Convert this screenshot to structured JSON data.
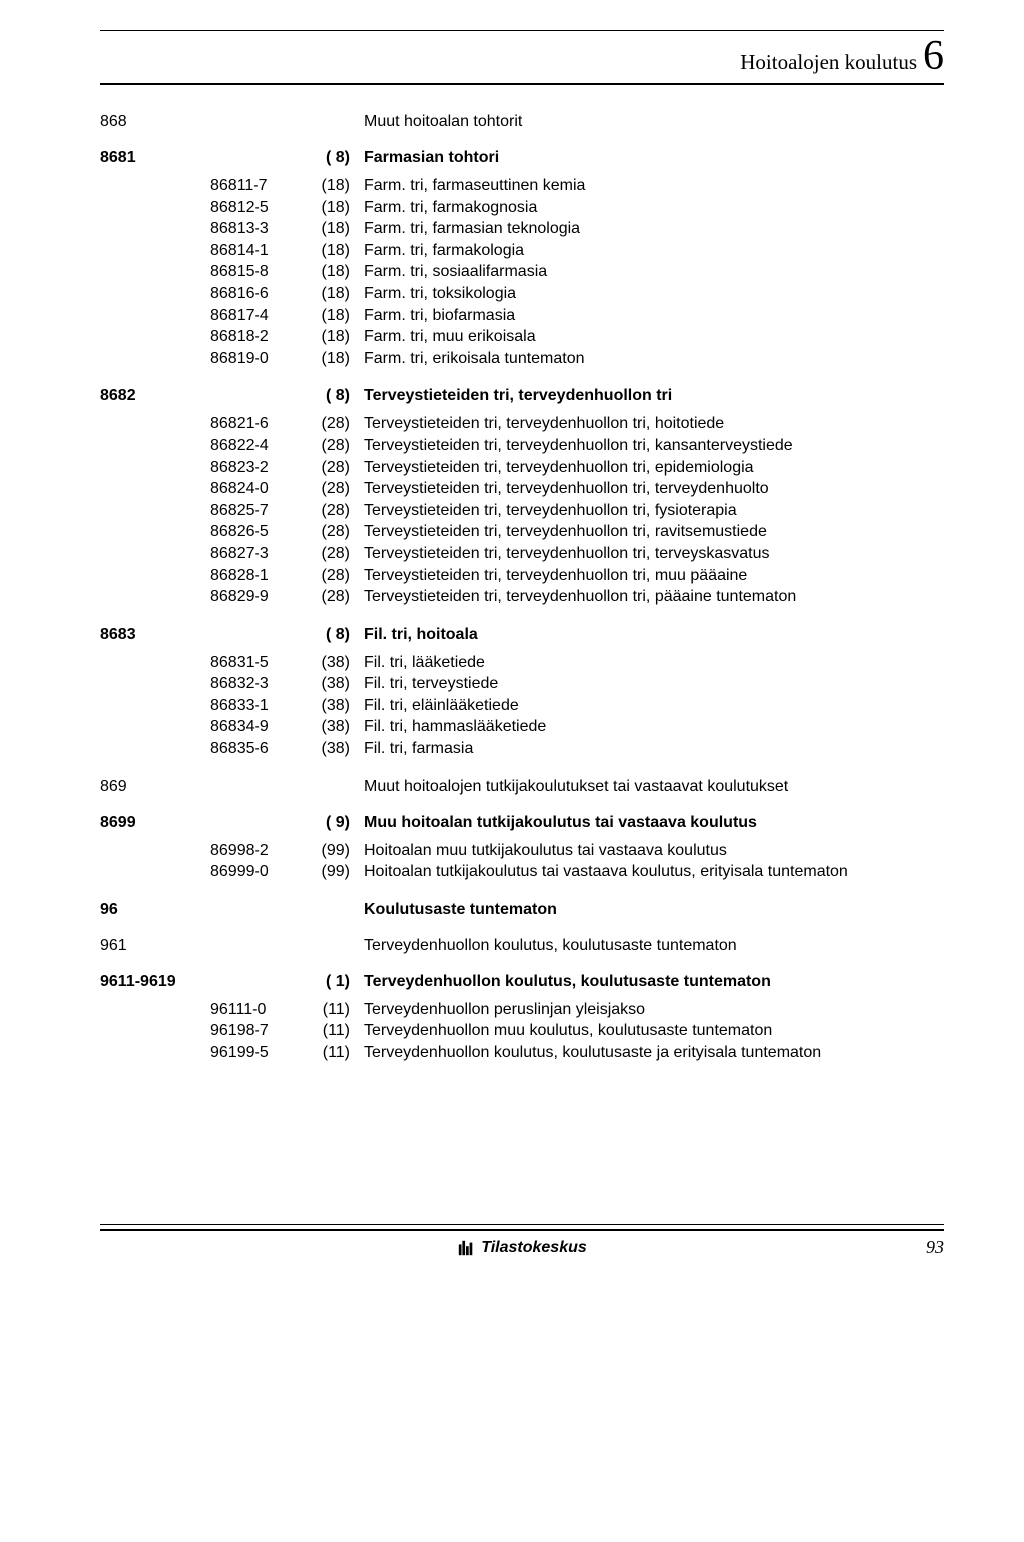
{
  "header": {
    "title": "Hoitoalojen koulutus",
    "chapter_number": "6"
  },
  "sections": [
    {
      "code": "868",
      "text": "Muut hoitoalan tohtorit",
      "type": "plain"
    },
    {
      "code": "8681",
      "paren": "( 8)",
      "text": "Farmasian tohtori",
      "type": "bold",
      "rows": [
        {
          "sub": "86811-7",
          "paren": "(18)",
          "text": "Farm. tri, farmaseuttinen kemia"
        },
        {
          "sub": "86812-5",
          "paren": "(18)",
          "text": "Farm. tri, farmakognosia"
        },
        {
          "sub": "86813-3",
          "paren": "(18)",
          "text": "Farm. tri, farmasian teknologia"
        },
        {
          "sub": "86814-1",
          "paren": "(18)",
          "text": "Farm. tri, farmakologia"
        },
        {
          "sub": "86815-8",
          "paren": "(18)",
          "text": "Farm. tri, sosiaalifarmasia"
        },
        {
          "sub": "86816-6",
          "paren": "(18)",
          "text": "Farm. tri, toksikologia"
        },
        {
          "sub": "86817-4",
          "paren": "(18)",
          "text": "Farm. tri, biofarmasia"
        },
        {
          "sub": "86818-2",
          "paren": "(18)",
          "text": "Farm. tri, muu erikoisala"
        },
        {
          "sub": "86819-0",
          "paren": "(18)",
          "text": "Farm. tri, erikoisala tuntematon"
        }
      ]
    },
    {
      "code": "8682",
      "paren": "( 8)",
      "text": "Terveystieteiden tri, terveydenhuollon tri",
      "type": "bold",
      "rows": [
        {
          "sub": "86821-6",
          "paren": "(28)",
          "text": "Terveystieteiden tri, terveydenhuollon tri, hoitotiede"
        },
        {
          "sub": "86822-4",
          "paren": "(28)",
          "text": "Terveystieteiden tri, terveydenhuollon tri, kansanterveystiede"
        },
        {
          "sub": "86823-2",
          "paren": "(28)",
          "text": "Terveystieteiden tri, terveydenhuollon tri, epidemiologia"
        },
        {
          "sub": "86824-0",
          "paren": "(28)",
          "text": "Terveystieteiden tri, terveydenhuollon tri, terveydenhuolto"
        },
        {
          "sub": "86825-7",
          "paren": "(28)",
          "text": "Terveystieteiden tri, terveydenhuollon tri, fysioterapia"
        },
        {
          "sub": "86826-5",
          "paren": "(28)",
          "text": "Terveystieteiden tri, terveydenhuollon tri, ravitsemustiede"
        },
        {
          "sub": "86827-3",
          "paren": "(28)",
          "text": "Terveystieteiden tri, terveydenhuollon tri, terveyskasvatus"
        },
        {
          "sub": "86828-1",
          "paren": "(28)",
          "text": "Terveystieteiden tri, terveydenhuollon tri, muu pääaine"
        },
        {
          "sub": "86829-9",
          "paren": "(28)",
          "text": "Terveystieteiden tri, terveydenhuollon tri, pääaine tuntematon"
        }
      ]
    },
    {
      "code": "8683",
      "paren": "( 8)",
      "text": "Fil. tri, hoitoala",
      "type": "bold",
      "rows": [
        {
          "sub": "86831-5",
          "paren": "(38)",
          "text": "Fil. tri, lääketiede"
        },
        {
          "sub": "86832-3",
          "paren": "(38)",
          "text": "Fil. tri, terveystiede"
        },
        {
          "sub": "86833-1",
          "paren": "(38)",
          "text": "Fil. tri, eläinlääketiede"
        },
        {
          "sub": "86834-9",
          "paren": "(38)",
          "text": "Fil. tri, hammaslääketiede"
        },
        {
          "sub": "86835-6",
          "paren": "(38)",
          "text": "Fil. tri, farmasia"
        }
      ]
    },
    {
      "code": "869",
      "text": "Muut hoitoalojen tutkijakoulutukset tai vastaavat koulutukset",
      "type": "plain"
    },
    {
      "code": "8699",
      "paren": "( 9)",
      "text": "Muu hoitoalan tutkijakoulutus tai vastaava koulutus",
      "type": "bold",
      "rows": [
        {
          "sub": "86998-2",
          "paren": "(99)",
          "text": "Hoitoalan muu tutkijakoulutus tai vastaava koulutus"
        },
        {
          "sub": "86999-0",
          "paren": "(99)",
          "text": "Hoitoalan tutkijakoulutus tai vastaava koulutus, erityisala tuntematon"
        }
      ]
    },
    {
      "code": "96",
      "text": "Koulutusaste tuntematon",
      "type": "level"
    },
    {
      "code": "961",
      "text": "Terveydenhuollon koulutus, koulutusaste tuntematon",
      "type": "plain"
    },
    {
      "code": "9611-9619",
      "paren": "( 1)",
      "text": "Terveydenhuollon koulutus, koulutusaste tuntematon",
      "type": "bold",
      "rows": [
        {
          "sub": "96111-0",
          "paren": "(11)",
          "text": "Terveydenhuollon peruslinjan yleisjakso"
        },
        {
          "sub": "96198-7",
          "paren": "(11)",
          "text": "Terveydenhuollon muu koulutus, koulutusaste tuntematon"
        },
        {
          "sub": "96199-5",
          "paren": "(11)",
          "text": "Terveydenhuollon koulutus, koulutusaste ja erityisala tuntematon"
        }
      ]
    }
  ],
  "footer": {
    "publisher": "Tilastokeskus",
    "page_number": "93"
  }
}
